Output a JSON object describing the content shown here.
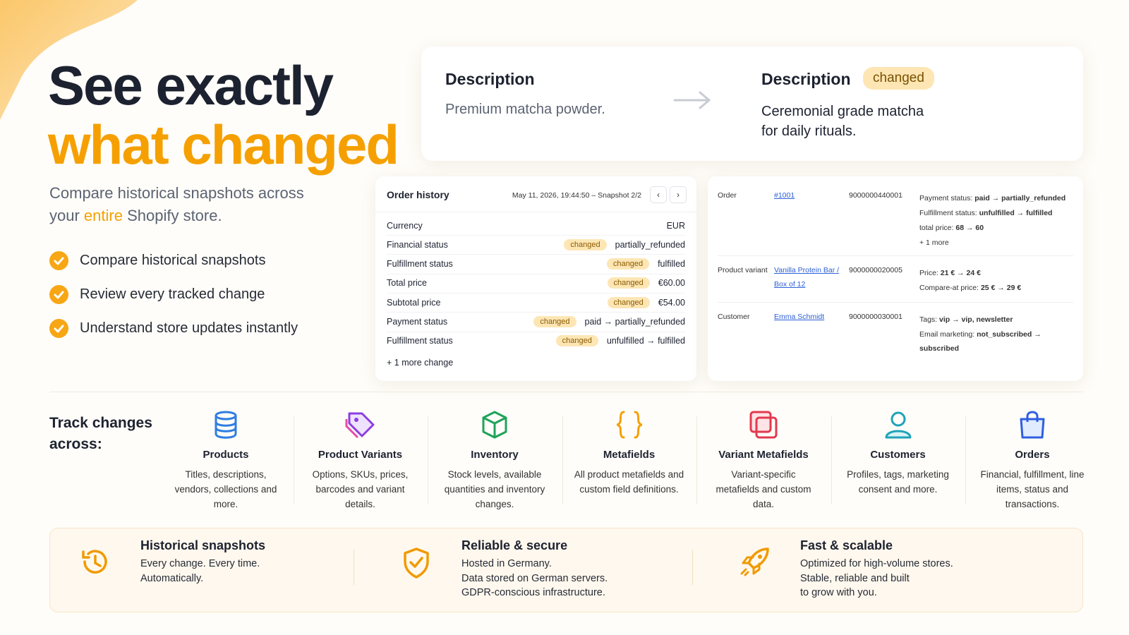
{
  "hero": {
    "title_line1": "See exactly",
    "title_line2": "what changed",
    "subtitle_before": "Compare historical snapshots across your ",
    "subtitle_highlight": "entire",
    "subtitle_after": " Shopify store.",
    "bullets": [
      "Compare historical snapshots",
      "Review every tracked change",
      "Understand store updates instantly"
    ]
  },
  "description_card": {
    "left_title": "Description",
    "left_text": "Premium matcha powder.",
    "right_title": "Description",
    "right_badge": "changed",
    "right_text": "Ceremonial grade matcha for daily rituals."
  },
  "order_history": {
    "title": "Order history",
    "timestamp": "May 11, 2026, 19:44:50 – Snapshot 2/2",
    "prev": "‹",
    "next": "›",
    "rows": [
      {
        "label": "Currency",
        "value": "EUR"
      },
      {
        "label": "Financial status",
        "badge": "changed",
        "value": "partially_refunded"
      },
      {
        "label": "Fulfillment status",
        "badge": "changed",
        "value": "fulfilled"
      },
      {
        "label": "Total price",
        "badge": "changed",
        "value": "€60.00"
      },
      {
        "label": "Subtotal price",
        "badge": "changed",
        "value": "€54.00"
      },
      {
        "label": "Payment status",
        "badge": "changed",
        "value": "paid → partially_refunded"
      },
      {
        "label": "Fulfillment status",
        "badge": "changed",
        "value": "unfulfilled → fulfilled"
      }
    ],
    "more": "+ 1 more change"
  },
  "change_table": {
    "rows": [
      {
        "type": "Order",
        "link": "#1001",
        "id": "9000000440001",
        "details": [
          {
            "label": "Payment status:",
            "value": "paid → partially_refunded"
          },
          {
            "label": "Fulfillment status:",
            "value": "unfulfilled → fulfilled"
          },
          {
            "label": "total price:",
            "value": "68 → 60"
          },
          {
            "label": "+ 1 more"
          }
        ]
      },
      {
        "type": "Product variant",
        "link": "Vanilla Protein Bar / Box of 12",
        "id": "9000000020005",
        "details": [
          {
            "label": "Price:",
            "value": "21 € → 24 €"
          },
          {
            "label": "Compare-at price:",
            "value": "25 € → 29 €"
          }
        ]
      },
      {
        "type": "Customer",
        "link": "Emma Schmidt",
        "id": "9000000030001",
        "details": [
          {
            "label": "Tags:",
            "value": "vip → vip, newsletter"
          },
          {
            "label": "Email marketing:",
            "value": "not_subscribed → subscribed"
          }
        ]
      }
    ]
  },
  "track": {
    "heading": "Track changes across:",
    "items": [
      {
        "title": "Products",
        "description": "Titles, descriptions, vendors, collections and more."
      },
      {
        "title": "Product Variants",
        "description": "Options, SKUs, prices, barcodes and variant details."
      },
      {
        "title": "Inventory",
        "description": "Stock levels, available quantities and inventory changes."
      },
      {
        "title": "Metafields",
        "description": "All product metafields and custom field definitions."
      },
      {
        "title": "Variant Metafields",
        "description": "Variant-specific metafields and custom data."
      },
      {
        "title": "Customers",
        "description": "Profiles, tags, marketing consent and more."
      },
      {
        "title": "Orders",
        "description": "Financial, fulfillment, line items, status and transactions."
      }
    ]
  },
  "features": [
    {
      "title": "Historical snapshots",
      "lines": [
        "Every change. Every time.",
        "Automatically."
      ]
    },
    {
      "title": "Reliable & secure",
      "lines": [
        "Hosted in Germany.",
        "Data stored on German servers.",
        "GDPR-conscious infrastructure."
      ]
    },
    {
      "title": "Fast & scalable",
      "lines": [
        "Optimized for high-volume stores.",
        "Stable, reliable and built",
        "to grow with you."
      ]
    }
  ]
}
